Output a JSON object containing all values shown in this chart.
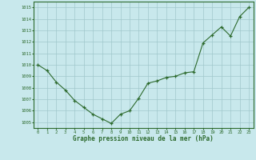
{
  "x": [
    0,
    1,
    2,
    3,
    4,
    5,
    6,
    7,
    8,
    9,
    10,
    11,
    12,
    13,
    14,
    15,
    16,
    17,
    18,
    19,
    20,
    21,
    22,
    23
  ],
  "y": [
    1010.0,
    1009.5,
    1008.5,
    1007.8,
    1006.9,
    1006.3,
    1005.7,
    1005.3,
    1004.9,
    1005.7,
    1006.0,
    1007.1,
    1008.4,
    1008.6,
    1008.9,
    1009.0,
    1009.3,
    1009.4,
    1011.9,
    1012.6,
    1013.3,
    1012.5,
    1014.2,
    1015.0
  ],
  "line_color": "#2d6a2d",
  "marker_color": "#2d6a2d",
  "bg_color": "#c8e8ec",
  "grid_color": "#a0c8cc",
  "xlabel": "Graphe pression niveau de la mer (hPa)",
  "xlabel_color": "#2d6a2d",
  "tick_color": "#2d6a2d",
  "ylim": [
    1004.5,
    1015.5
  ],
  "yticks": [
    1005,
    1006,
    1007,
    1008,
    1009,
    1010,
    1011,
    1012,
    1013,
    1014,
    1015
  ],
  "xticks": [
    0,
    1,
    2,
    3,
    4,
    5,
    6,
    7,
    8,
    9,
    10,
    11,
    12,
    13,
    14,
    15,
    16,
    17,
    18,
    19,
    20,
    21,
    22,
    23
  ],
  "figsize": [
    3.2,
    2.0
  ],
  "dpi": 100
}
